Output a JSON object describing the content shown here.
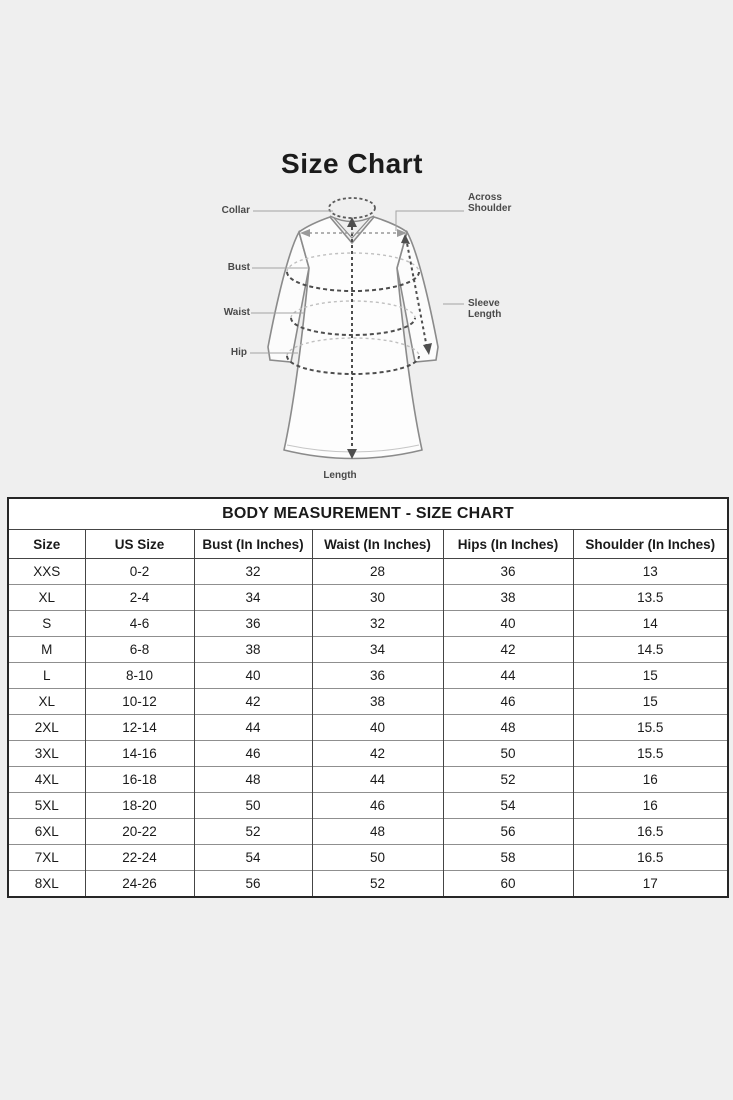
{
  "page": {
    "title": "Size Chart"
  },
  "colors": {
    "background": "#efefef",
    "garment_outline": "#8b8b8b",
    "measure_dash": "#4e4e4e",
    "light_dash": "#c0c0c0",
    "connector": "#a3a3a3",
    "table_border": "#262626",
    "text": "#1a1a1a"
  },
  "diagram": {
    "labels": {
      "collar": "Collar",
      "bust": "Bust",
      "waist": "Waist",
      "hip": "Hip",
      "across_shoulder": "Across\nShoulder",
      "sleeve_length": "Sleeve\nLength",
      "length": "Length"
    }
  },
  "table": {
    "title": "BODY MEASUREMENT - SIZE CHART",
    "columns": [
      "Size",
      "US Size",
      "Bust (In Inches)",
      "Waist (In Inches)",
      "Hips (In Inches)",
      "Shoulder (In Inches)"
    ],
    "rows": [
      [
        "XXS",
        "0-2",
        "32",
        "28",
        "36",
        "13"
      ],
      [
        "XL",
        "2-4",
        "34",
        "30",
        "38",
        "13.5"
      ],
      [
        "S",
        "4-6",
        "36",
        "32",
        "40",
        "14"
      ],
      [
        "M",
        "6-8",
        "38",
        "34",
        "42",
        "14.5"
      ],
      [
        "L",
        "8-10",
        "40",
        "36",
        "44",
        "15"
      ],
      [
        "XL",
        "10-12",
        "42",
        "38",
        "46",
        "15"
      ],
      [
        "2XL",
        "12-14",
        "44",
        "40",
        "48",
        "15.5"
      ],
      [
        "3XL",
        "14-16",
        "46",
        "42",
        "50",
        "15.5"
      ],
      [
        "4XL",
        "16-18",
        "48",
        "44",
        "52",
        "16"
      ],
      [
        "5XL",
        "18-20",
        "50",
        "46",
        "54",
        "16"
      ],
      [
        "6XL",
        "20-22",
        "52",
        "48",
        "56",
        "16.5"
      ],
      [
        "7XL",
        "22-24",
        "54",
        "50",
        "58",
        "16.5"
      ],
      [
        "8XL",
        "24-26",
        "56",
        "52",
        "60",
        "17"
      ]
    ]
  }
}
